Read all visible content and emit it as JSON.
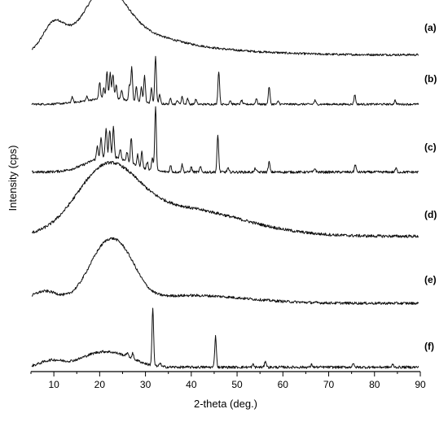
{
  "chart_data": {
    "type": "line",
    "title": "",
    "xlabel": "2-theta (deg.)",
    "ylabel": "Intensity (cps)",
    "xlim": [
      5,
      90
    ],
    "x_ticks": [
      10,
      20,
      30,
      40,
      50,
      60,
      70,
      80,
      90
    ],
    "stacked_offset_traces": true,
    "series": [
      {
        "name": "(a)",
        "baseline": 0.04,
        "humps": [
          [
            10,
            0.52,
            2.4
          ],
          [
            21,
            0.93,
            4.5
          ],
          [
            26,
            0.35,
            9
          ],
          [
            40,
            0.1,
            14
          ]
        ],
        "peaks": []
      },
      {
        "name": "(b)",
        "baseline": 0.03,
        "humps": [
          [
            22,
            0.12,
            5
          ]
        ],
        "peaks": [
          [
            14.0,
            0.12
          ],
          [
            17.2,
            0.08
          ],
          [
            20.0,
            0.35
          ],
          [
            20.9,
            0.22
          ],
          [
            21.6,
            0.55
          ],
          [
            22.3,
            0.52
          ],
          [
            22.9,
            0.5
          ],
          [
            23.6,
            0.28
          ],
          [
            24.8,
            0.2
          ],
          [
            26.5,
            0.3
          ],
          [
            27.0,
            0.68
          ],
          [
            28.0,
            0.3
          ],
          [
            29.1,
            0.3
          ],
          [
            29.8,
            0.55
          ],
          [
            31.3,
            0.3
          ],
          [
            32.2,
            0.97
          ],
          [
            33.1,
            0.18
          ],
          [
            35.5,
            0.12
          ],
          [
            37.0,
            0.08
          ],
          [
            38.0,
            0.16
          ],
          [
            39.2,
            0.12
          ],
          [
            41.0,
            0.1
          ],
          [
            46.0,
            0.68
          ],
          [
            48.5,
            0.08
          ],
          [
            51.0,
            0.08
          ],
          [
            54.2,
            0.12
          ],
          [
            57.0,
            0.36
          ],
          [
            59.0,
            0.06
          ],
          [
            67.0,
            0.08
          ],
          [
            75.7,
            0.2
          ],
          [
            84.5,
            0.08
          ]
        ]
      },
      {
        "name": "(c)",
        "baseline": 0.03,
        "humps": [
          [
            22,
            0.25,
            4.5
          ]
        ],
        "peaks": [
          [
            19.5,
            0.2
          ],
          [
            20.3,
            0.3
          ],
          [
            21.4,
            0.45
          ],
          [
            22.2,
            0.42
          ],
          [
            23.0,
            0.46
          ],
          [
            24.5,
            0.15
          ],
          [
            26.0,
            0.15
          ],
          [
            26.9,
            0.4
          ],
          [
            28.3,
            0.18
          ],
          [
            29.2,
            0.25
          ],
          [
            30.4,
            0.12
          ],
          [
            31.5,
            0.2
          ],
          [
            32.2,
            1.0
          ],
          [
            35.5,
            0.1
          ],
          [
            38.0,
            0.12
          ],
          [
            40.0,
            0.08
          ],
          [
            42.0,
            0.08
          ],
          [
            45.8,
            0.58
          ],
          [
            48.0,
            0.06
          ],
          [
            54.0,
            0.06
          ],
          [
            57.0,
            0.16
          ],
          [
            67.0,
            0.06
          ],
          [
            75.8,
            0.12
          ],
          [
            84.7,
            0.06
          ]
        ]
      },
      {
        "name": "(d)",
        "baseline": 0.06,
        "humps": [
          [
            21.5,
            0.82,
            6.5
          ],
          [
            35,
            0.32,
            12
          ],
          [
            48,
            0.1,
            12
          ]
        ],
        "peaks": []
      },
      {
        "name": "(e)",
        "baseline": 0.05,
        "humps": [
          [
            8,
            0.18,
            3
          ],
          [
            21.5,
            0.85,
            4
          ],
          [
            26.2,
            0.28,
            3
          ],
          [
            40,
            0.12,
            12
          ]
        ],
        "peaks": []
      },
      {
        "name": "(f)",
        "baseline": 0.03,
        "humps": [
          [
            9.5,
            0.1,
            2.5
          ],
          [
            20.5,
            0.23,
            4.5
          ],
          [
            26.5,
            0.06,
            3
          ]
        ],
        "peaks": [
          [
            26.0,
            0.06
          ],
          [
            27.2,
            0.08
          ],
          [
            31.6,
            0.88
          ],
          [
            33.2,
            0.06
          ],
          [
            45.3,
            0.48
          ],
          [
            53.5,
            0.04
          ],
          [
            56.2,
            0.1
          ],
          [
            66.3,
            0.04
          ],
          [
            75.3,
            0.06
          ],
          [
            84.0,
            0.04
          ]
        ]
      }
    ]
  }
}
